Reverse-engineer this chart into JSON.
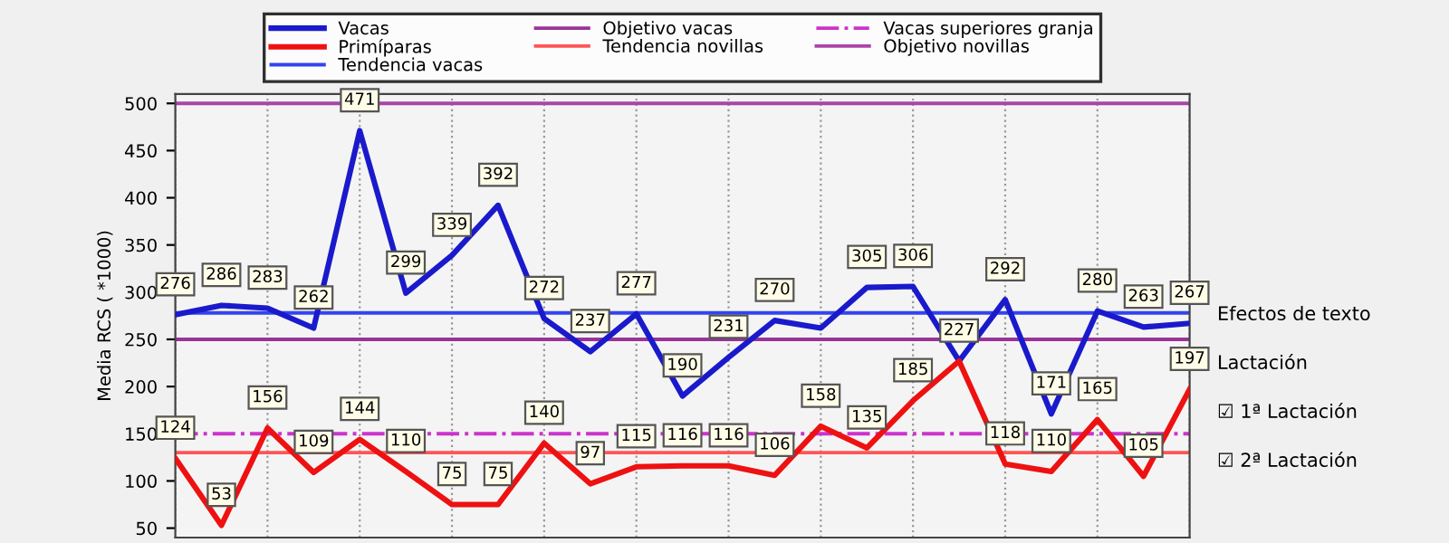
{
  "chart_data": {
    "type": "line",
    "ylabel": "Media RCS ( *1000)",
    "categories": [
      null,
      null,
      null,
      null,
      null,
      null,
      null,
      null,
      null,
      null,
      null,
      null,
      null,
      null,
      null,
      null,
      null,
      null,
      null,
      null,
      null,
      null,
      null
    ],
    "series": [
      {
        "name": "Vacas",
        "color": "#1a1acc",
        "values": [
          276,
          286,
          283,
          262,
          471,
          299,
          339,
          392,
          272,
          237,
          277,
          190,
          231,
          270,
          262,
          305,
          306,
          227,
          292,
          171,
          280,
          263,
          267
        ],
        "value_labels": [
          "276",
          "286",
          "283",
          "262",
          "471",
          "299",
          "339",
          "392",
          "272",
          "237",
          "277",
          "190",
          "231",
          "270",
          null,
          "305",
          "306",
          null,
          "292",
          "171",
          "280",
          "263",
          "267"
        ]
      },
      {
        "name": "Primíparas",
        "color": "#ee1111",
        "values": [
          124,
          53,
          156,
          109,
          144,
          110,
          75,
          75,
          140,
          97,
          115,
          116,
          116,
          106,
          158,
          135,
          185,
          227,
          118,
          110,
          165,
          105,
          197
        ],
        "value_labels": [
          "124",
          "53",
          "156",
          "109",
          "144",
          "110",
          "75",
          "75",
          "140",
          "97",
          "115",
          "116",
          "116",
          "106",
          "158",
          "135",
          "185",
          "227",
          "118",
          "110",
          "165",
          "105",
          "197"
        ]
      }
    ],
    "ref_lines": [
      {
        "axis": "y",
        "value": 278,
        "label": "Tendencia vacas",
        "color": "#3344ee",
        "line_style": "solid"
      },
      {
        "axis": "y",
        "value": 250,
        "label": "Objetivo vacas",
        "color": "#993399",
        "line_style": "solid"
      },
      {
        "axis": "y",
        "value": 130,
        "label": "Tendencia novillas",
        "color": "#ff5555",
        "line_style": "solid"
      },
      {
        "axis": "y",
        "value": 150,
        "label": "Vacas superiores granja",
        "color": "#cc33cc",
        "line_style": "dashed"
      },
      {
        "axis": "y",
        "value": 500,
        "label": "Objetivo novillas",
        "color": "#aa44aa",
        "line_style": "solid"
      }
    ],
    "ylim": [
      40,
      510
    ],
    "yticks": [
      50,
      100,
      150,
      200,
      250,
      300,
      350,
      400,
      450,
      500
    ],
    "grid": "x",
    "legend": "top",
    "marker": "none",
    "line_style": "solid",
    "annotations": [
      "Efectos de texto",
      "Lactación",
      "☑ 1ª Lactación",
      "☑ 2ª Lactación"
    ]
  }
}
